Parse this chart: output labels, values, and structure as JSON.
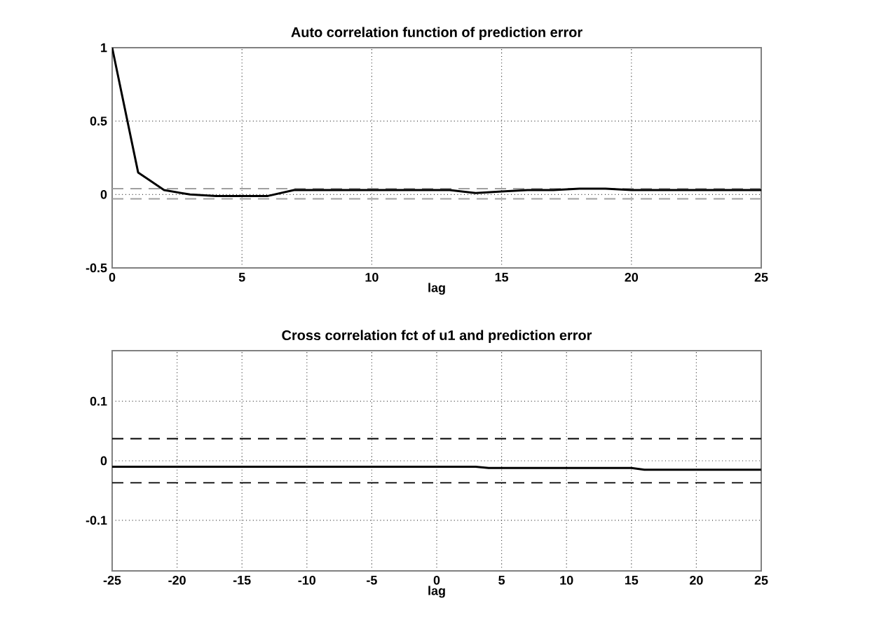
{
  "chart_data": [
    {
      "type": "line",
      "title": "Auto correlation function of prediction error",
      "xlabel": "lag",
      "x": [
        0,
        1,
        2,
        3,
        4,
        5,
        6,
        7,
        8,
        9,
        10,
        11,
        12,
        13,
        14,
        15,
        16,
        17,
        18,
        19,
        20,
        21,
        22,
        23,
        24,
        25
      ],
      "series": [
        {
          "color": "#000000",
          "values": [
            1,
            0.15,
            0.03,
            0,
            -0.01,
            -0.01,
            -0.01,
            0.03,
            0.03,
            0.03,
            0.03,
            0.03,
            0.03,
            0.03,
            0.01,
            0.02,
            0.03,
            0.03,
            0.04,
            0.04,
            0.03,
            0.03,
            0.03,
            0.03,
            0.03,
            0.03
          ]
        }
      ],
      "xlim": [
        0,
        25
      ],
      "xticks": [
        0,
        5,
        10,
        15,
        20,
        25
      ],
      "ylim": [
        -0.5,
        1
      ],
      "yticks": [
        -0.5,
        0,
        0.5,
        1
      ],
      "ref_lines": [
        {
          "axis": "y",
          "value": 0.04,
          "color": "#a0a0a0",
          "line_style": "dashed"
        },
        {
          "axis": "y",
          "value": -0.03,
          "color": "#a0a0a0",
          "line_style": "dashed"
        }
      ],
      "grid": true
    },
    {
      "type": "line",
      "title": "Cross correlation fct of u1 and prediction error",
      "xlabel": "lag",
      "x": [
        -25,
        -20,
        -15,
        -10,
        -5,
        0,
        3,
        4,
        10,
        15,
        16,
        20,
        25
      ],
      "series": [
        {
          "color": "#000000",
          "values": [
            -0.01,
            -0.01,
            -0.01,
            -0.01,
            -0.01,
            -0.01,
            -0.01,
            -0.012,
            -0.012,
            -0.012,
            -0.015,
            -0.015,
            -0.015
          ]
        }
      ],
      "xlim": [
        -25,
        25
      ],
      "xticks": [
        -25,
        -20,
        -15,
        -10,
        -5,
        0,
        5,
        10,
        15,
        20,
        25
      ],
      "ylim": [
        -0.185,
        0.185
      ],
      "yticks": [
        -0.1,
        0,
        0.1
      ],
      "ref_lines": [
        {
          "axis": "y",
          "value": 0.037,
          "color": "#000000",
          "line_style": "dashed"
        },
        {
          "axis": "y",
          "value": -0.037,
          "color": "#000000",
          "line_style": "dashed"
        }
      ],
      "grid": true
    }
  ]
}
